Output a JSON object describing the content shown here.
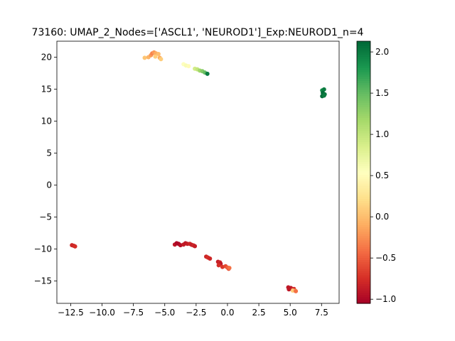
{
  "chart_data": {
    "type": "scatter",
    "title": "73160: UMAP_2_Nodes=['ASCL1', 'NEUROD1']_Exp:NEUROD1_n=4",
    "xlabel": "",
    "ylabel": "",
    "xlim": [
      -13.6,
      8.9
    ],
    "ylim": [
      -18.5,
      22.5
    ],
    "xticks": [
      -12.5,
      -10.0,
      -7.5,
      -5.0,
      -2.5,
      0.0,
      2.5,
      5.0,
      7.5
    ],
    "yticks": [
      -15,
      -10,
      -5,
      0,
      5,
      10,
      15,
      20
    ],
    "grid": false,
    "colorbar": {
      "colormap": "RdYlGn",
      "min": -1.05,
      "max": 2.13,
      "ticks": [
        -1.0,
        -0.5,
        0.0,
        0.5,
        1.0,
        1.5,
        2.0
      ],
      "tick_labels": [
        "−1.0",
        "−0.5",
        "0.0",
        "0.5",
        "1.0",
        "1.5",
        "2.0"
      ]
    },
    "points": [
      {
        "x": -12.4,
        "y": -9.4,
        "c": -0.8
      },
      {
        "x": -12.25,
        "y": -9.5,
        "c": -0.8
      },
      {
        "x": -12.15,
        "y": -9.6,
        "c": -0.75
      },
      {
        "x": -6.6,
        "y": 19.9,
        "c": 0.05
      },
      {
        "x": -6.3,
        "y": 20.0,
        "c": -0.05
      },
      {
        "x": -6.1,
        "y": 20.3,
        "c": -0.2
      },
      {
        "x": -6.0,
        "y": 20.6,
        "c": -0.3
      },
      {
        "x": -5.85,
        "y": 20.75,
        "c": -0.2
      },
      {
        "x": -5.7,
        "y": 20.6,
        "c": -0.1
      },
      {
        "x": -5.75,
        "y": 20.1,
        "c": 0.1
      },
      {
        "x": -5.5,
        "y": 20.5,
        "c": 0.0
      },
      {
        "x": -5.4,
        "y": 19.9,
        "c": -0.1
      },
      {
        "x": -5.3,
        "y": 19.7,
        "c": 0.1
      },
      {
        "x": -3.5,
        "y": 18.9,
        "c": 0.55
      },
      {
        "x": -3.3,
        "y": 18.7,
        "c": 0.6
      },
      {
        "x": -3.1,
        "y": 18.6,
        "c": 0.5
      },
      {
        "x": -2.6,
        "y": 18.2,
        "c": 0.9
      },
      {
        "x": -2.4,
        "y": 18.1,
        "c": 1.0
      },
      {
        "x": -2.2,
        "y": 17.9,
        "c": 1.2
      },
      {
        "x": -2.0,
        "y": 17.8,
        "c": 1.35
      },
      {
        "x": -1.8,
        "y": 17.6,
        "c": 1.5
      },
      {
        "x": -1.6,
        "y": 17.4,
        "c": 2.0
      },
      {
        "x": 7.55,
        "y": 14.8,
        "c": 1.9
      },
      {
        "x": 7.7,
        "y": 14.95,
        "c": 2.0
      },
      {
        "x": 7.6,
        "y": 14.4,
        "c": 2.1
      },
      {
        "x": 7.75,
        "y": 14.2,
        "c": 2.05
      },
      {
        "x": 7.55,
        "y": 13.9,
        "c": 2.1
      },
      {
        "x": 7.7,
        "y": 14.0,
        "c": 2.0
      },
      {
        "x": -4.2,
        "y": -9.3,
        "c": -0.9
      },
      {
        "x": -4.05,
        "y": -9.1,
        "c": -1.0
      },
      {
        "x": -3.9,
        "y": -9.2,
        "c": -1.0
      },
      {
        "x": -3.75,
        "y": -9.4,
        "c": -0.95
      },
      {
        "x": -3.5,
        "y": -9.3,
        "c": -0.85
      },
      {
        "x": -3.35,
        "y": -9.1,
        "c": -0.9
      },
      {
        "x": -3.2,
        "y": -9.2,
        "c": -0.85
      },
      {
        "x": -3.0,
        "y": -9.2,
        "c": -0.8
      },
      {
        "x": -2.85,
        "y": -9.35,
        "c": -0.85
      },
      {
        "x": -2.7,
        "y": -9.45,
        "c": -0.8
      },
      {
        "x": -2.6,
        "y": -9.55,
        "c": -0.85
      },
      {
        "x": -1.7,
        "y": -11.2,
        "c": -0.8
      },
      {
        "x": -1.55,
        "y": -11.35,
        "c": -0.75
      },
      {
        "x": -1.4,
        "y": -11.5,
        "c": -0.8
      },
      {
        "x": -0.75,
        "y": -12.0,
        "c": -0.85
      },
      {
        "x": -0.6,
        "y": -12.1,
        "c": -0.8
      },
      {
        "x": -0.55,
        "y": -12.3,
        "c": -0.9
      },
      {
        "x": -0.7,
        "y": -12.55,
        "c": -0.75
      },
      {
        "x": -0.4,
        "y": -12.8,
        "c": -0.7
      },
      {
        "x": -0.15,
        "y": -12.7,
        "c": -0.6
      },
      {
        "x": 0.0,
        "y": -12.9,
        "c": -0.5
      },
      {
        "x": 0.1,
        "y": -13.1,
        "c": -0.55
      },
      {
        "x": 0.15,
        "y": -12.95,
        "c": -0.4
      },
      {
        "x": 4.85,
        "y": -16.0,
        "c": -0.9
      },
      {
        "x": 4.95,
        "y": -16.2,
        "c": -0.85
      },
      {
        "x": 5.05,
        "y": -16.1,
        "c": -0.9
      },
      {
        "x": 5.15,
        "y": -16.3,
        "c": -0.8
      },
      {
        "x": 5.3,
        "y": -16.25,
        "c": -0.75
      },
      {
        "x": 5.2,
        "y": -16.5,
        "c": 0.1
      },
      {
        "x": 5.4,
        "y": -16.55,
        "c": 0.0
      },
      {
        "x": 5.45,
        "y": -16.6,
        "c": -0.4
      },
      {
        "x": 4.9,
        "y": -16.3,
        "c": -0.9
      }
    ]
  }
}
